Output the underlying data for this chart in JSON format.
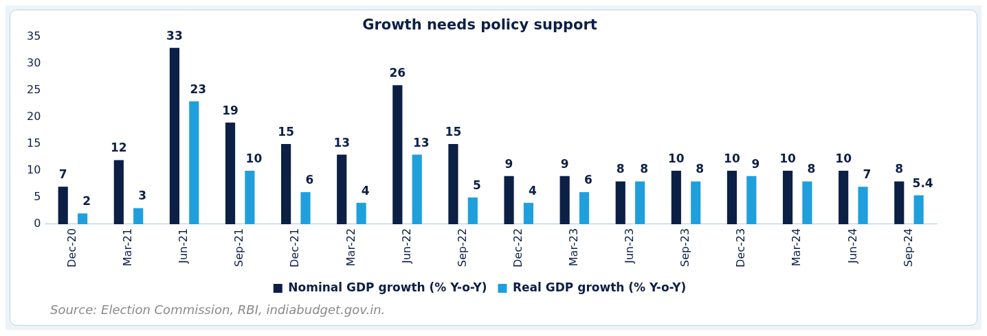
{
  "chart_data": {
    "type": "bar",
    "title": "Growth needs policy support",
    "categories": [
      "Dec-20",
      "Mar-21",
      "Jun-21",
      "Sep-21",
      "Dec-21",
      "Mar-22",
      "Jun-22",
      "Sep-22",
      "Dec-22",
      "Mar-23",
      "Jun-23",
      "Sep-23",
      "Dec-23",
      "Mar-24",
      "Jun-24",
      "Sep-24"
    ],
    "series": [
      {
        "name": "Nominal GDP growth (% Y-o-Y)",
        "color": "#0c1f45",
        "values": [
          7,
          12,
          33,
          19,
          15,
          13,
          26,
          15,
          9,
          9,
          8,
          10,
          10,
          10,
          10,
          8
        ]
      },
      {
        "name": "Real GDP growth (% Y-o-Y)",
        "color": "#1fa0dc",
        "values": [
          2,
          3,
          23,
          10,
          6,
          4,
          13,
          5,
          4,
          6,
          8,
          8,
          9,
          8,
          7,
          5.4
        ]
      }
    ],
    "ylim": [
      0,
      35
    ],
    "yticks": [
      0,
      5,
      10,
      15,
      20,
      25,
      30,
      35
    ],
    "grid": false,
    "legend": "bottom",
    "data_labels": true,
    "annotations": [
      "Source: Election Commission, RBI, indiabudget.gov.in."
    ]
  }
}
